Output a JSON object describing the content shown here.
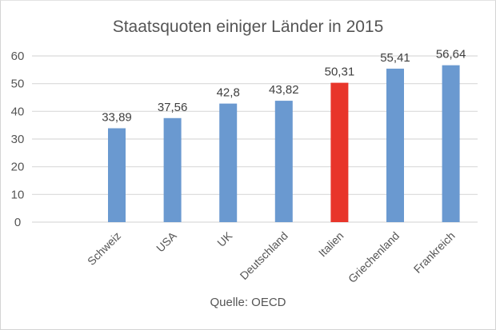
{
  "chart_data": {
    "type": "bar",
    "title": "Staatsquoten einiger Länder in 2015",
    "source": "Quelle: OECD",
    "xlabel": "",
    "ylabel": "",
    "categories": [
      "Schweiz",
      "USA",
      "UK",
      "Deutschland",
      "Italien",
      "Griechenland",
      "Frankreich"
    ],
    "values": [
      33.89,
      37.56,
      42.8,
      43.82,
      50.31,
      55.41,
      56.64
    ],
    "value_labels": [
      "33,89",
      "37,56",
      "42,8",
      "43,82",
      "50,31",
      "55,41",
      "56,64"
    ],
    "ylim": [
      0,
      60
    ],
    "yticks": [
      0,
      10,
      20,
      30,
      40,
      50,
      60
    ],
    "ytick_labels": [
      "0",
      "10",
      "20",
      "30",
      "40",
      "50",
      "60"
    ],
    "grid": true,
    "legend": "none",
    "colors": {
      "default": "#6a99d0",
      "highlight": "#e8352a",
      "highlight_category": "Italien"
    }
  }
}
